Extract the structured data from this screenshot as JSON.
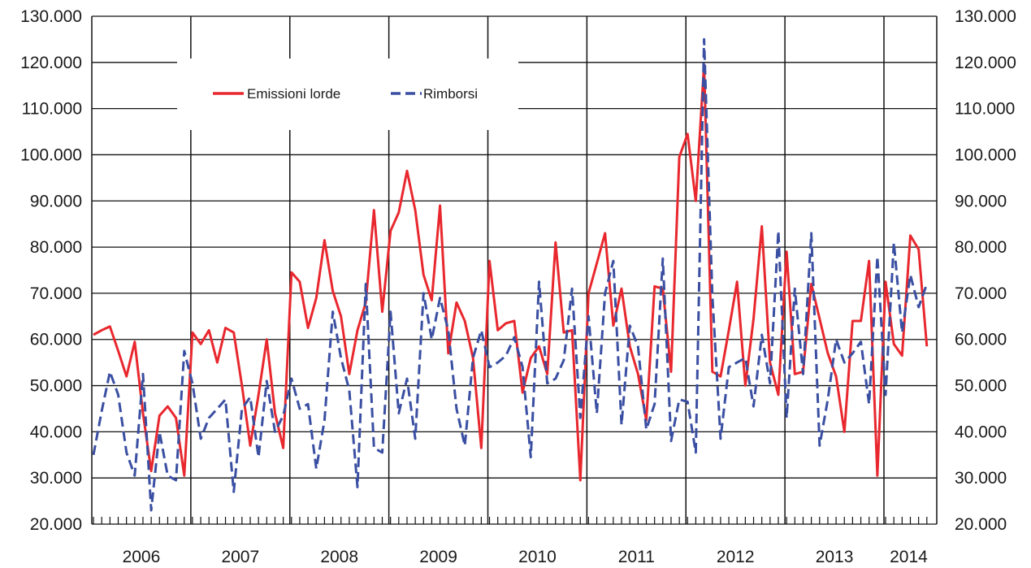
{
  "chart_data": {
    "type": "line",
    "title": "",
    "xlabel": "",
    "ylabel": "",
    "ylim": [
      20000,
      130000
    ],
    "y_ticks": [
      "20.000",
      "30.000",
      "40.000",
      "50.000",
      "60.000",
      "70.000",
      "80.000",
      "90.000",
      "100.000",
      "110.000",
      "120.000",
      "130.000"
    ],
    "y_tick_values": [
      20000,
      30000,
      40000,
      50000,
      60000,
      70000,
      80000,
      90000,
      100000,
      110000,
      120000,
      130000
    ],
    "right_axis_duplicate": true,
    "grid": "horizontal and year separators",
    "legend_position": "top-left",
    "years": [
      "2006",
      "2007",
      "2008",
      "2009",
      "2010",
      "2011",
      "2012",
      "2013",
      "2014"
    ],
    "months_per_year": [
      12,
      12,
      12,
      12,
      12,
      12,
      12,
      12,
      6
    ],
    "series": [
      {
        "name": "Emissioni lorde",
        "color": "#e8282e",
        "dash": "solid",
        "values": [
          61000,
          62000,
          62800,
          57500,
          52000,
          59500,
          44000,
          31500,
          43500,
          45500,
          43000,
          30500,
          61500,
          59000,
          62000,
          55000,
          62500,
          61500,
          50000,
          37000,
          48000,
          60000,
          44000,
          36500,
          74500,
          72500,
          62500,
          69000,
          81500,
          70500,
          65000,
          52500,
          62000,
          68000,
          88000,
          66000,
          83500,
          87500,
          96500,
          88000,
          74000,
          68500,
          89000,
          57000,
          68000,
          64000,
          56000,
          36500,
          77000,
          62000,
          63500,
          64000,
          48500,
          56000,
          58500,
          52500,
          81000,
          61500,
          62000,
          29500,
          70000,
          76500,
          83000,
          63000,
          71000,
          58500,
          52500,
          42500,
          71500,
          71000,
          53000,
          99500,
          104500,
          90000,
          119500,
          53000,
          52000,
          62000,
          72500,
          50000,
          64500,
          84500,
          55000,
          48000,
          79000,
          52500,
          53000,
          72000,
          64500,
          57000,
          52000,
          40000,
          64000,
          64000,
          77000,
          30500,
          72500,
          59000,
          56500,
          82500,
          79500,
          58500
        ]
      },
      {
        "name": "Rimborsi",
        "color": "#3a4fa2",
        "dash": "dashed",
        "values": [
          35000,
          44500,
          53000,
          48000,
          35500,
          30500,
          52500,
          23000,
          40000,
          30500,
          29500,
          57500,
          50500,
          38500,
          43000,
          45000,
          47000,
          27000,
          45000,
          47500,
          34500,
          51000,
          40000,
          43500,
          51500,
          45000,
          46000,
          32000,
          42500,
          66000,
          56000,
          49000,
          28000,
          72000,
          36500,
          35500,
          66000,
          44000,
          51500,
          38500,
          70000,
          60000,
          69000,
          62000,
          45000,
          37000,
          56000,
          62000,
          54000,
          55000,
          56500,
          60500,
          54000,
          34500,
          72500,
          50500,
          51500,
          55500,
          71000,
          43000,
          65000,
          44000,
          70000,
          77000,
          41500,
          63000,
          58500,
          40500,
          46000,
          77500,
          38000,
          47000,
          46500,
          35500,
          125000,
          69500,
          38500,
          54000,
          55000,
          56000,
          45500,
          61000,
          50500,
          83500,
          43000,
          71000,
          52500,
          83000,
          37000,
          47000,
          60000,
          55000,
          57000,
          59500,
          46000,
          78000,
          48000,
          81000,
          61500,
          74000,
          67000,
          72000
        ]
      }
    ]
  },
  "legend": {
    "item1": "Emissioni lorde",
    "item2": "Rimborsi"
  }
}
